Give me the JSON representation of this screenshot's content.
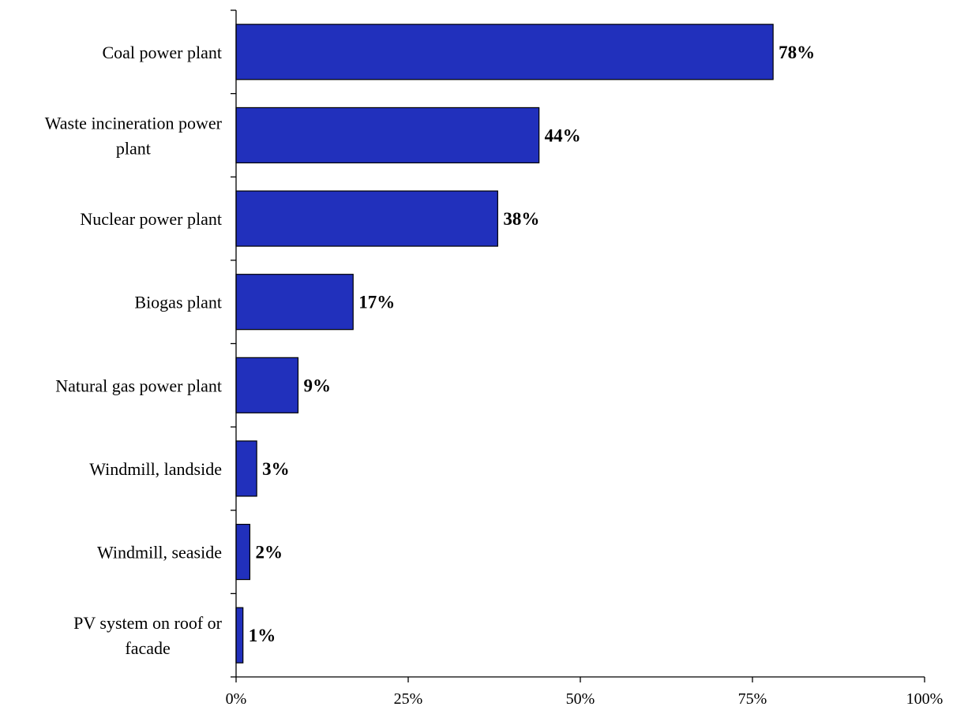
{
  "chart_data": {
    "type": "bar",
    "orientation": "horizontal",
    "title": "",
    "xlabel": "",
    "ylabel": "",
    "categories": [
      "Coal  power plant",
      "Waste incineration power plant",
      "Nuclear power plant",
      "Biogas plant",
      "Natural gas  power plant",
      "Windmill, landside",
      "Windmill, seaside",
      "PV system on roof or facade"
    ],
    "category_lines": [
      [
        "Coal  power plant"
      ],
      [
        "Waste incineration power",
        "plant"
      ],
      [
        "Nuclear power plant"
      ],
      [
        "Biogas plant"
      ],
      [
        "Natural gas  power plant"
      ],
      [
        "Windmill, landside"
      ],
      [
        "Windmill, seaside"
      ],
      [
        "PV system on roof or",
        "facade"
      ]
    ],
    "values": [
      78,
      44,
      38,
      17,
      9,
      3,
      2,
      1
    ],
    "data_labels": [
      "78%",
      "44%",
      "38%",
      "17%",
      "9%",
      "3%",
      "2%",
      "1%"
    ],
    "xlim": [
      0,
      100
    ],
    "x_ticks": [
      0,
      25,
      50,
      75,
      100
    ],
    "x_tick_labels": [
      "0%",
      "25%",
      "50%",
      "75%",
      "100%"
    ],
    "grid": false,
    "legend": "none",
    "bar_color": "#2130BC",
    "bar_edge_color": "#000000"
  }
}
